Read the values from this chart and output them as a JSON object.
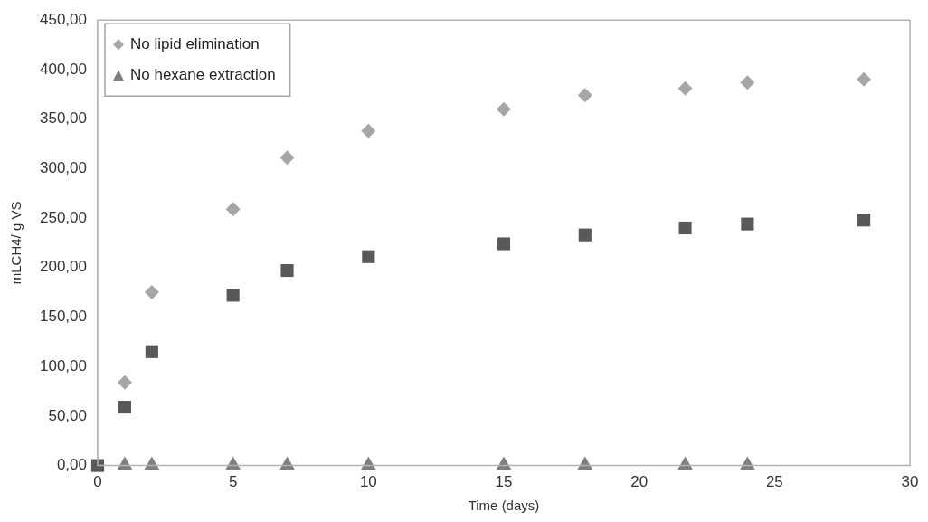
{
  "chart_data": {
    "type": "scatter",
    "xlabel": "Time (days)",
    "ylabel": "mLCH4/ g VS",
    "xlim": [
      0,
      30
    ],
    "xticks": [
      0,
      5,
      10,
      15,
      20,
      25,
      30
    ],
    "ylim": [
      0,
      450
    ],
    "yticks": [
      {
        "value": 0,
        "label": "0,00"
      },
      {
        "value": 50,
        "label": "50,00"
      },
      {
        "value": 100,
        "label": "100,00"
      },
      {
        "value": 150,
        "label": "150,00"
      },
      {
        "value": 200,
        "label": "200,00"
      },
      {
        "value": 250,
        "label": "250,00"
      },
      {
        "value": 300,
        "label": "300,00"
      },
      {
        "value": 350,
        "label": "350,00"
      },
      {
        "value": 400,
        "label": "400,00"
      },
      {
        "value": 450,
        "label": "450,00"
      }
    ],
    "grid": false,
    "legend": "top left",
    "series": [
      {
        "color": "#595959",
        "marker": "square",
        "x": [
          0,
          1,
          2,
          5,
          7,
          10,
          15,
          18,
          21.7,
          24,
          28.3
        ],
        "values": [
          0,
          59,
          115,
          172,
          197,
          211,
          224,
          233,
          240,
          244,
          248
        ]
      },
      {
        "name": "No lipid elimination",
        "color": "#a6a6a6",
        "marker": "diamond",
        "x": [
          1,
          2,
          5,
          7,
          10,
          15,
          18,
          21.7,
          24,
          28.3
        ],
        "values": [
          84,
          175,
          259,
          311,
          338,
          360,
          374,
          381,
          387,
          390
        ]
      },
      {
        "name": "No hexane extraction",
        "color": "#7f7f7f",
        "marker": "triangle",
        "x": [
          1,
          2,
          5,
          7,
          10,
          15,
          18,
          21.7,
          24
        ],
        "values": [
          0,
          0,
          0,
          0,
          0,
          0,
          0,
          0,
          0
        ]
      }
    ]
  }
}
